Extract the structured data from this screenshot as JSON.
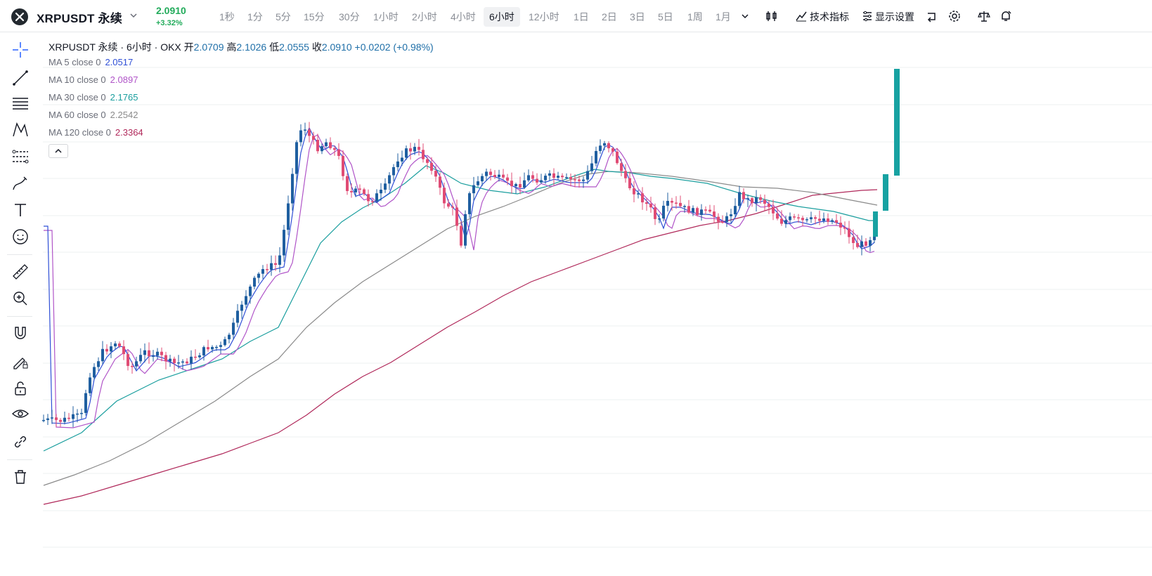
{
  "header": {
    "symbol": "XRPUSDT 永续",
    "price": "2.0910",
    "change_pct": "+3.32%",
    "timeframes": [
      {
        "label": "1秒"
      },
      {
        "label": "1分"
      },
      {
        "label": "5分"
      },
      {
        "label": "15分"
      },
      {
        "label": "30分"
      },
      {
        "label": "1小时"
      },
      {
        "label": "2小时"
      },
      {
        "label": "4小时"
      },
      {
        "label": "6小时",
        "active": true
      },
      {
        "label": "12小时"
      },
      {
        "label": "1日"
      },
      {
        "label": "2日"
      },
      {
        "label": "3日"
      },
      {
        "label": "5日"
      },
      {
        "label": "1周"
      },
      {
        "label": "1月"
      }
    ],
    "indicators_label": "技术指标",
    "display_settings_label": "显示设置"
  },
  "legend": {
    "title": "XRPUSDT 永续 · 6小时 · OKX",
    "open_label": "开",
    "open": "2.0709",
    "high_label": "高",
    "high": "2.1026",
    "low_label": "低",
    "low": "2.0555",
    "close_label": "收",
    "close": "2.0910",
    "change": "+0.0202 (+0.98%)",
    "ma": [
      {
        "label": "MA 5 close 0",
        "value": "2.0517",
        "color": "#2f4fd6"
      },
      {
        "label": "MA 10 close 0",
        "value": "2.0897",
        "color": "#b054c8"
      },
      {
        "label": "MA 30 close 0",
        "value": "2.1765",
        "color": "#1a9e9e"
      },
      {
        "label": "MA 60 close 0",
        "value": "2.2542",
        "color": "#8a8a8a"
      },
      {
        "label": "MA 120 close 0",
        "value": "2.3364",
        "color": "#b0285a"
      }
    ]
  },
  "colors": {
    "up": "#1f5fa0",
    "down": "#e04c75",
    "vol_up": "#17a2a2",
    "grid": "#eef0f2",
    "price_up_text": "#22ab5b"
  },
  "chart_data": {
    "type": "candlestick",
    "series": [
      {
        "name": "MA 5 close 0",
        "last": 2.0517
      },
      {
        "name": "MA 10 close 0",
        "last": 2.0897
      },
      {
        "name": "MA 30 close 0",
        "last": 2.1765
      },
      {
        "name": "MA 60 close 0",
        "last": 2.2542
      },
      {
        "name": "MA 120 close 0",
        "last": 2.3364
      }
    ],
    "last_candle": {
      "open": 2.0709,
      "high": 2.1026,
      "low": 2.0555,
      "close": 2.091
    }
  }
}
